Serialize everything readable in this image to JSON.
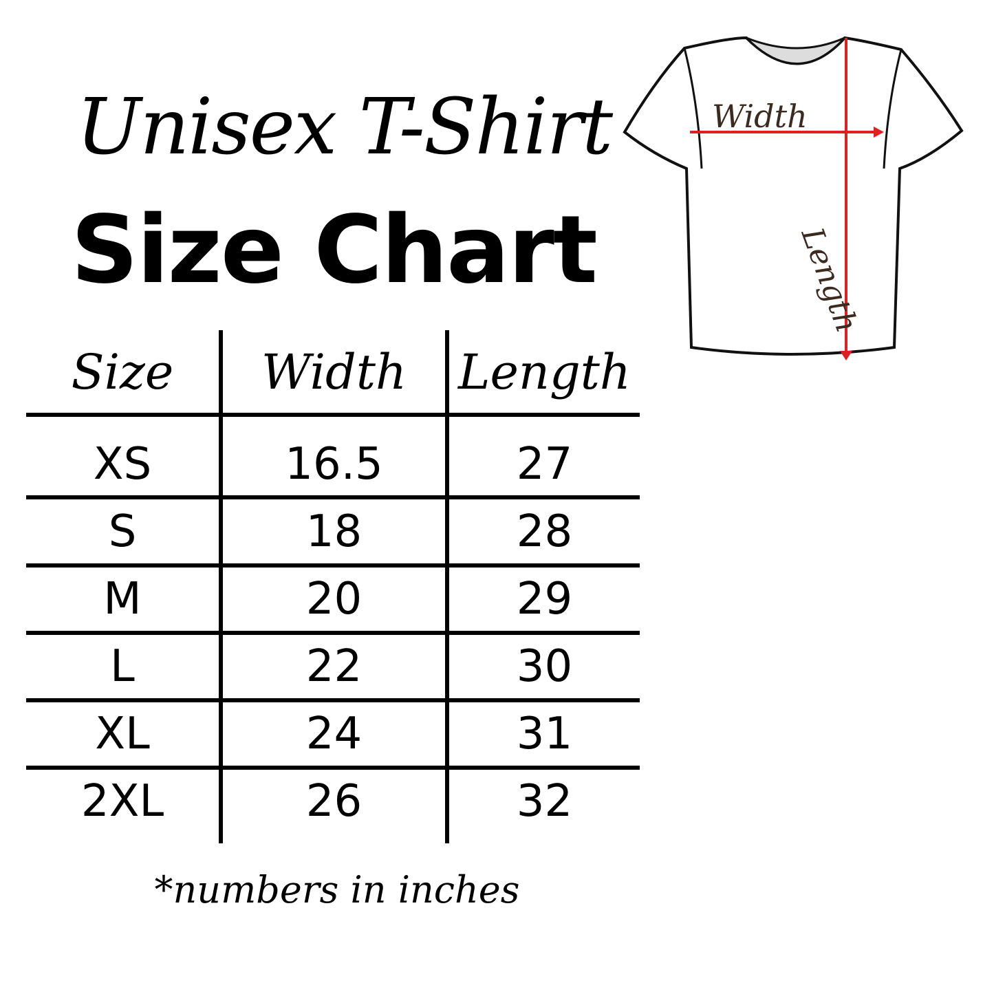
{
  "title": {
    "script": "Unisex T-Shirt",
    "bold": "Size Chart"
  },
  "table": {
    "headers": [
      "Size",
      "Width",
      "Length"
    ],
    "rows": [
      [
        "XS",
        "16.5",
        "27"
      ],
      [
        "S",
        "18",
        "28"
      ],
      [
        "M",
        "20",
        "29"
      ],
      [
        "L",
        "22",
        "30"
      ],
      [
        "XL",
        "24",
        "31"
      ],
      [
        "2XL",
        "26",
        "32"
      ]
    ]
  },
  "footnote": "*numbers in inches",
  "diagram": {
    "width_label": "Width",
    "length_label": "Length",
    "arrow_color": "#e02020"
  }
}
